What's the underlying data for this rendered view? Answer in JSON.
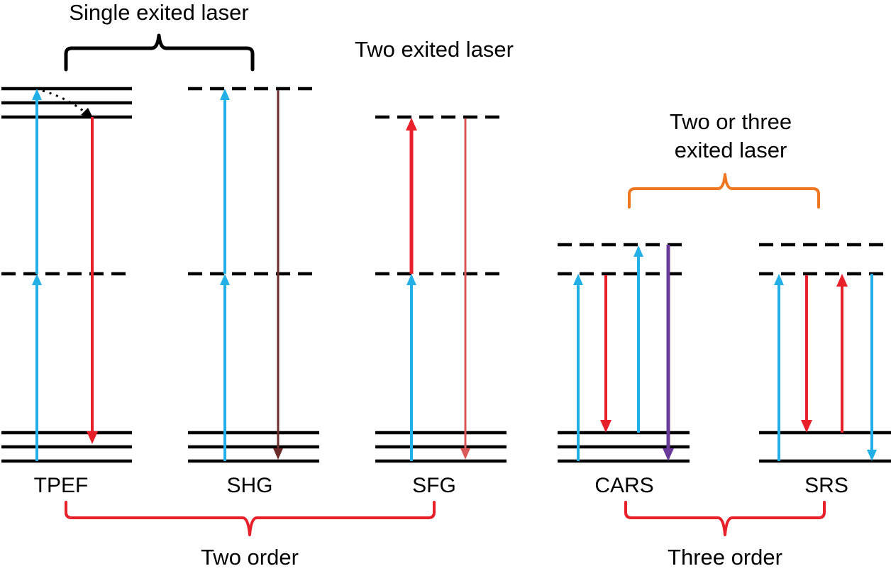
{
  "headers": {
    "single": "Single exited laser",
    "two": "Two exited laser",
    "two_or_three_line1": "Two or three",
    "two_or_three_line2": "exited laser"
  },
  "panels": {
    "tpef": "TPEF",
    "shg": "SHG",
    "sfg": "SFG",
    "cars": "CARS",
    "srs": "SRS"
  },
  "footers": {
    "two_order": "Two order",
    "three_order": "Three order"
  },
  "colors": {
    "level": "#000000",
    "pump_blue": "#22b0e6",
    "red": "#e8202a",
    "dark_red": "#6b2b2b",
    "light_red": "#d9585c",
    "purple": "#6a3a9a",
    "orange_bracket": "#ee7720",
    "red_bracket": "#e8202a",
    "black_bracket": "#000000"
  }
}
